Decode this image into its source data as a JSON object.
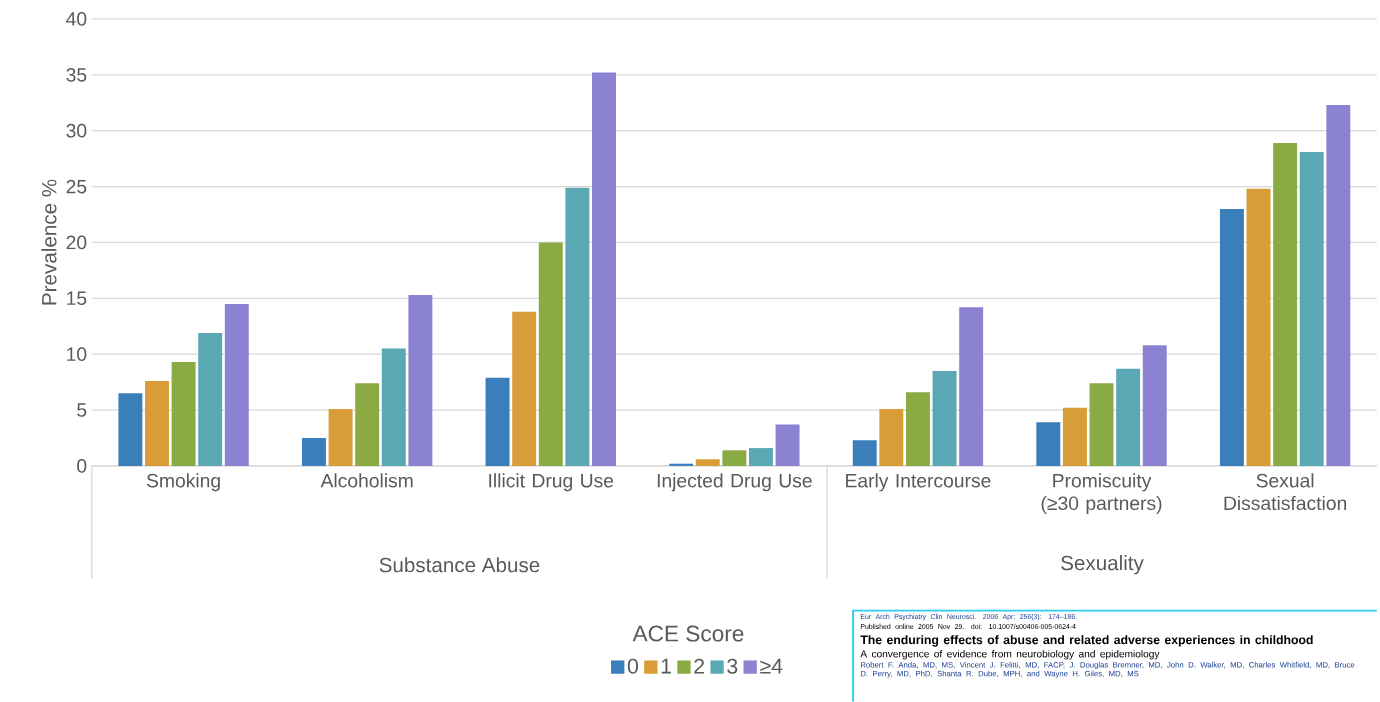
{
  "chart_data": {
    "type": "bar",
    "ylabel": "Prevalence %",
    "legend_title": "ACE Score",
    "legend": "bottom",
    "grid": "y",
    "categories": [
      "Smoking",
      "Alcoholism",
      "Illicit Drug Use",
      "Injected Drug Use",
      "Early Intercourse",
      "Promiscuity (≥30 partners)",
      "Sexual Dissatisfaction"
    ],
    "series": [
      {
        "name": "0",
        "color": "#3a7fba",
        "values": [
          6.5,
          2.5,
          7.9,
          0.2,
          2.3,
          3.9,
          23.0
        ]
      },
      {
        "name": "1",
        "color": "#d89d38",
        "values": [
          7.6,
          5.1,
          13.8,
          0.6,
          5.1,
          5.2,
          24.8
        ]
      },
      {
        "name": "2",
        "color": "#8aaa44",
        "values": [
          9.3,
          7.4,
          20.0,
          1.4,
          6.6,
          7.4,
          28.9
        ]
      },
      {
        "name": "3",
        "color": "#5aa8b4",
        "values": [
          11.9,
          10.5,
          24.9,
          1.6,
          8.5,
          8.7,
          28.1
        ]
      },
      {
        "name": "≥4",
        "color": "#8b82d2",
        "values": [
          14.5,
          15.3,
          35.2,
          3.7,
          14.2,
          10.8,
          32.3
        ]
      }
    ],
    "ylim": [
      0,
      40
    ],
    "yticks": [
      0,
      5,
      10,
      15,
      20,
      25,
      30,
      35,
      40
    ],
    "annotations": [
      "Substance Abuse",
      "Sexuality",
      "Eur Arch Psychiatry Clin Neurosci. 2006 Apr; 256(3): 174–186.",
      "Published online 2005 Nov 29. doi: 10.1007/s00406-005-0624-4",
      "The enduring effects of abuse and related adverse experiences in childhood",
      "A convergence of evidence from neurobiology and epidemiology",
      "Robert F. Anda, MD, MS, Vincent J. Felitti, MD, FACP, J. Douglas Bremner, MD, John D. Walker, MD, Charles Whitfield, MD, Bruce D. Perry, MD, PhD, Shanta R. Dube, MPH, and Wayne H. Giles, MD, MS"
    ]
  }
}
